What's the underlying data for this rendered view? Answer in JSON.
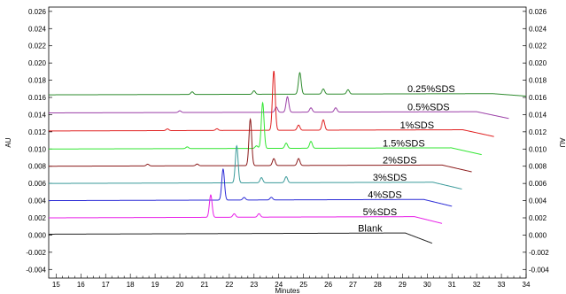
{
  "chart_data": {
    "type": "line",
    "xlabel": "Minutes",
    "ylabel_left": "AU",
    "ylabel_right": "AU",
    "xlim": [
      14.7,
      34.0
    ],
    "ylim": [
      -0.005,
      0.0265
    ],
    "x_ticks": [
      "15",
      "16",
      "17",
      "18",
      "19",
      "20",
      "21",
      "22",
      "23",
      "24",
      "25",
      "26",
      "27",
      "28",
      "29",
      "30",
      "31",
      "32",
      "33",
      "34"
    ],
    "y_ticks": [
      "0.026",
      "0.024",
      "0.022",
      "0.020",
      "0.018",
      "0.016",
      "0.014",
      "0.012",
      "0.010",
      "0.008",
      "0.006",
      "0.004",
      "0.002",
      "0.000",
      "-0.002",
      "-0.004"
    ],
    "y_tick_values": [
      0.026,
      0.024,
      0.022,
      0.02,
      0.018,
      0.016,
      0.014,
      0.012,
      0.01,
      0.008,
      0.006,
      0.004,
      0.002,
      0.0,
      -0.002,
      -0.004
    ],
    "grid": false,
    "series": [
      {
        "name": "0.25%SDS",
        "color": "#2e8b2e",
        "baseline": 0.0163,
        "x_start": 14.7,
        "x_end": 34.0,
        "end_drop": 0.0003,
        "label_x": 29.2,
        "peaks": [
          [
            20.5,
            0.0003
          ],
          [
            23.0,
            0.0004
          ],
          [
            24.85,
            0.0025
          ],
          [
            25.8,
            0.0006
          ],
          [
            26.8,
            0.0005
          ]
        ]
      },
      {
        "name": "0.5%SDS",
        "color": "#9b3fa7",
        "baseline": 0.0142,
        "x_start": 14.7,
        "x_end": 33.3,
        "end_drop": 0.0008,
        "label_x": 29.2,
        "peaks": [
          [
            20.0,
            0.0002
          ],
          [
            23.9,
            0.0006
          ],
          [
            24.35,
            0.0018
          ],
          [
            25.3,
            0.0005
          ],
          [
            26.3,
            0.0005
          ]
        ]
      },
      {
        "name": "1%SDS",
        "color": "#e02020",
        "baseline": 0.0121,
        "x_start": 14.7,
        "x_end": 32.7,
        "end_drop": 0.0008,
        "label_x": 28.9,
        "peaks": [
          [
            19.5,
            0.0002
          ],
          [
            21.5,
            0.0002
          ],
          [
            23.8,
            0.0069
          ],
          [
            24.8,
            0.0006
          ],
          [
            25.8,
            0.0012
          ]
        ]
      },
      {
        "name": "1.5%SDS",
        "color": "#33e633",
        "baseline": 0.01,
        "x_start": 14.7,
        "x_end": 32.2,
        "end_drop": 0.0008,
        "label_x": 28.2,
        "peaks": [
          [
            20.3,
            0.0002
          ],
          [
            23.1,
            0.0003
          ],
          [
            23.35,
            0.0053
          ],
          [
            24.3,
            0.0006
          ],
          [
            25.3,
            0.0008
          ]
        ]
      },
      {
        "name": "2%SDS",
        "color": "#8b1a1a",
        "baseline": 0.008,
        "x_start": 14.7,
        "x_end": 31.8,
        "end_drop": 0.0008,
        "label_x": 28.2,
        "peaks": [
          [
            18.7,
            0.0002
          ],
          [
            20.7,
            0.0002
          ],
          [
            22.85,
            0.0054
          ],
          [
            23.8,
            0.0008
          ],
          [
            24.8,
            0.0008
          ]
        ]
      },
      {
        "name": "3%SDS",
        "color": "#3a9a9a",
        "baseline": 0.006,
        "x_start": 14.7,
        "x_end": 31.4,
        "end_drop": 0.0008,
        "label_x": 27.8,
        "peaks": [
          [
            22.3,
            0.0043
          ],
          [
            23.3,
            0.0006
          ],
          [
            24.3,
            0.0007
          ]
        ]
      },
      {
        "name": "4%SDS",
        "color": "#2a2ad6",
        "baseline": 0.004,
        "x_start": 14.7,
        "x_end": 31.0,
        "end_drop": 0.0008,
        "label_x": 27.6,
        "peaks": [
          [
            21.75,
            0.0036
          ],
          [
            22.6,
            0.0003
          ],
          [
            23.7,
            0.0003
          ]
        ]
      },
      {
        "name": "5%SDS",
        "color": "#e81fe8",
        "baseline": 0.002,
        "x_start": 14.7,
        "x_end": 30.6,
        "end_drop": 0.0008,
        "label_x": 27.4,
        "peaks": [
          [
            21.25,
            0.0026
          ],
          [
            22.2,
            0.0004
          ],
          [
            23.2,
            0.0004
          ]
        ]
      },
      {
        "name": "Blank",
        "color": "#222222",
        "baseline": 0.0001,
        "x_start": 14.7,
        "x_end": 30.2,
        "end_drop": 0.0012,
        "label_x": 27.2,
        "peaks": []
      }
    ]
  }
}
